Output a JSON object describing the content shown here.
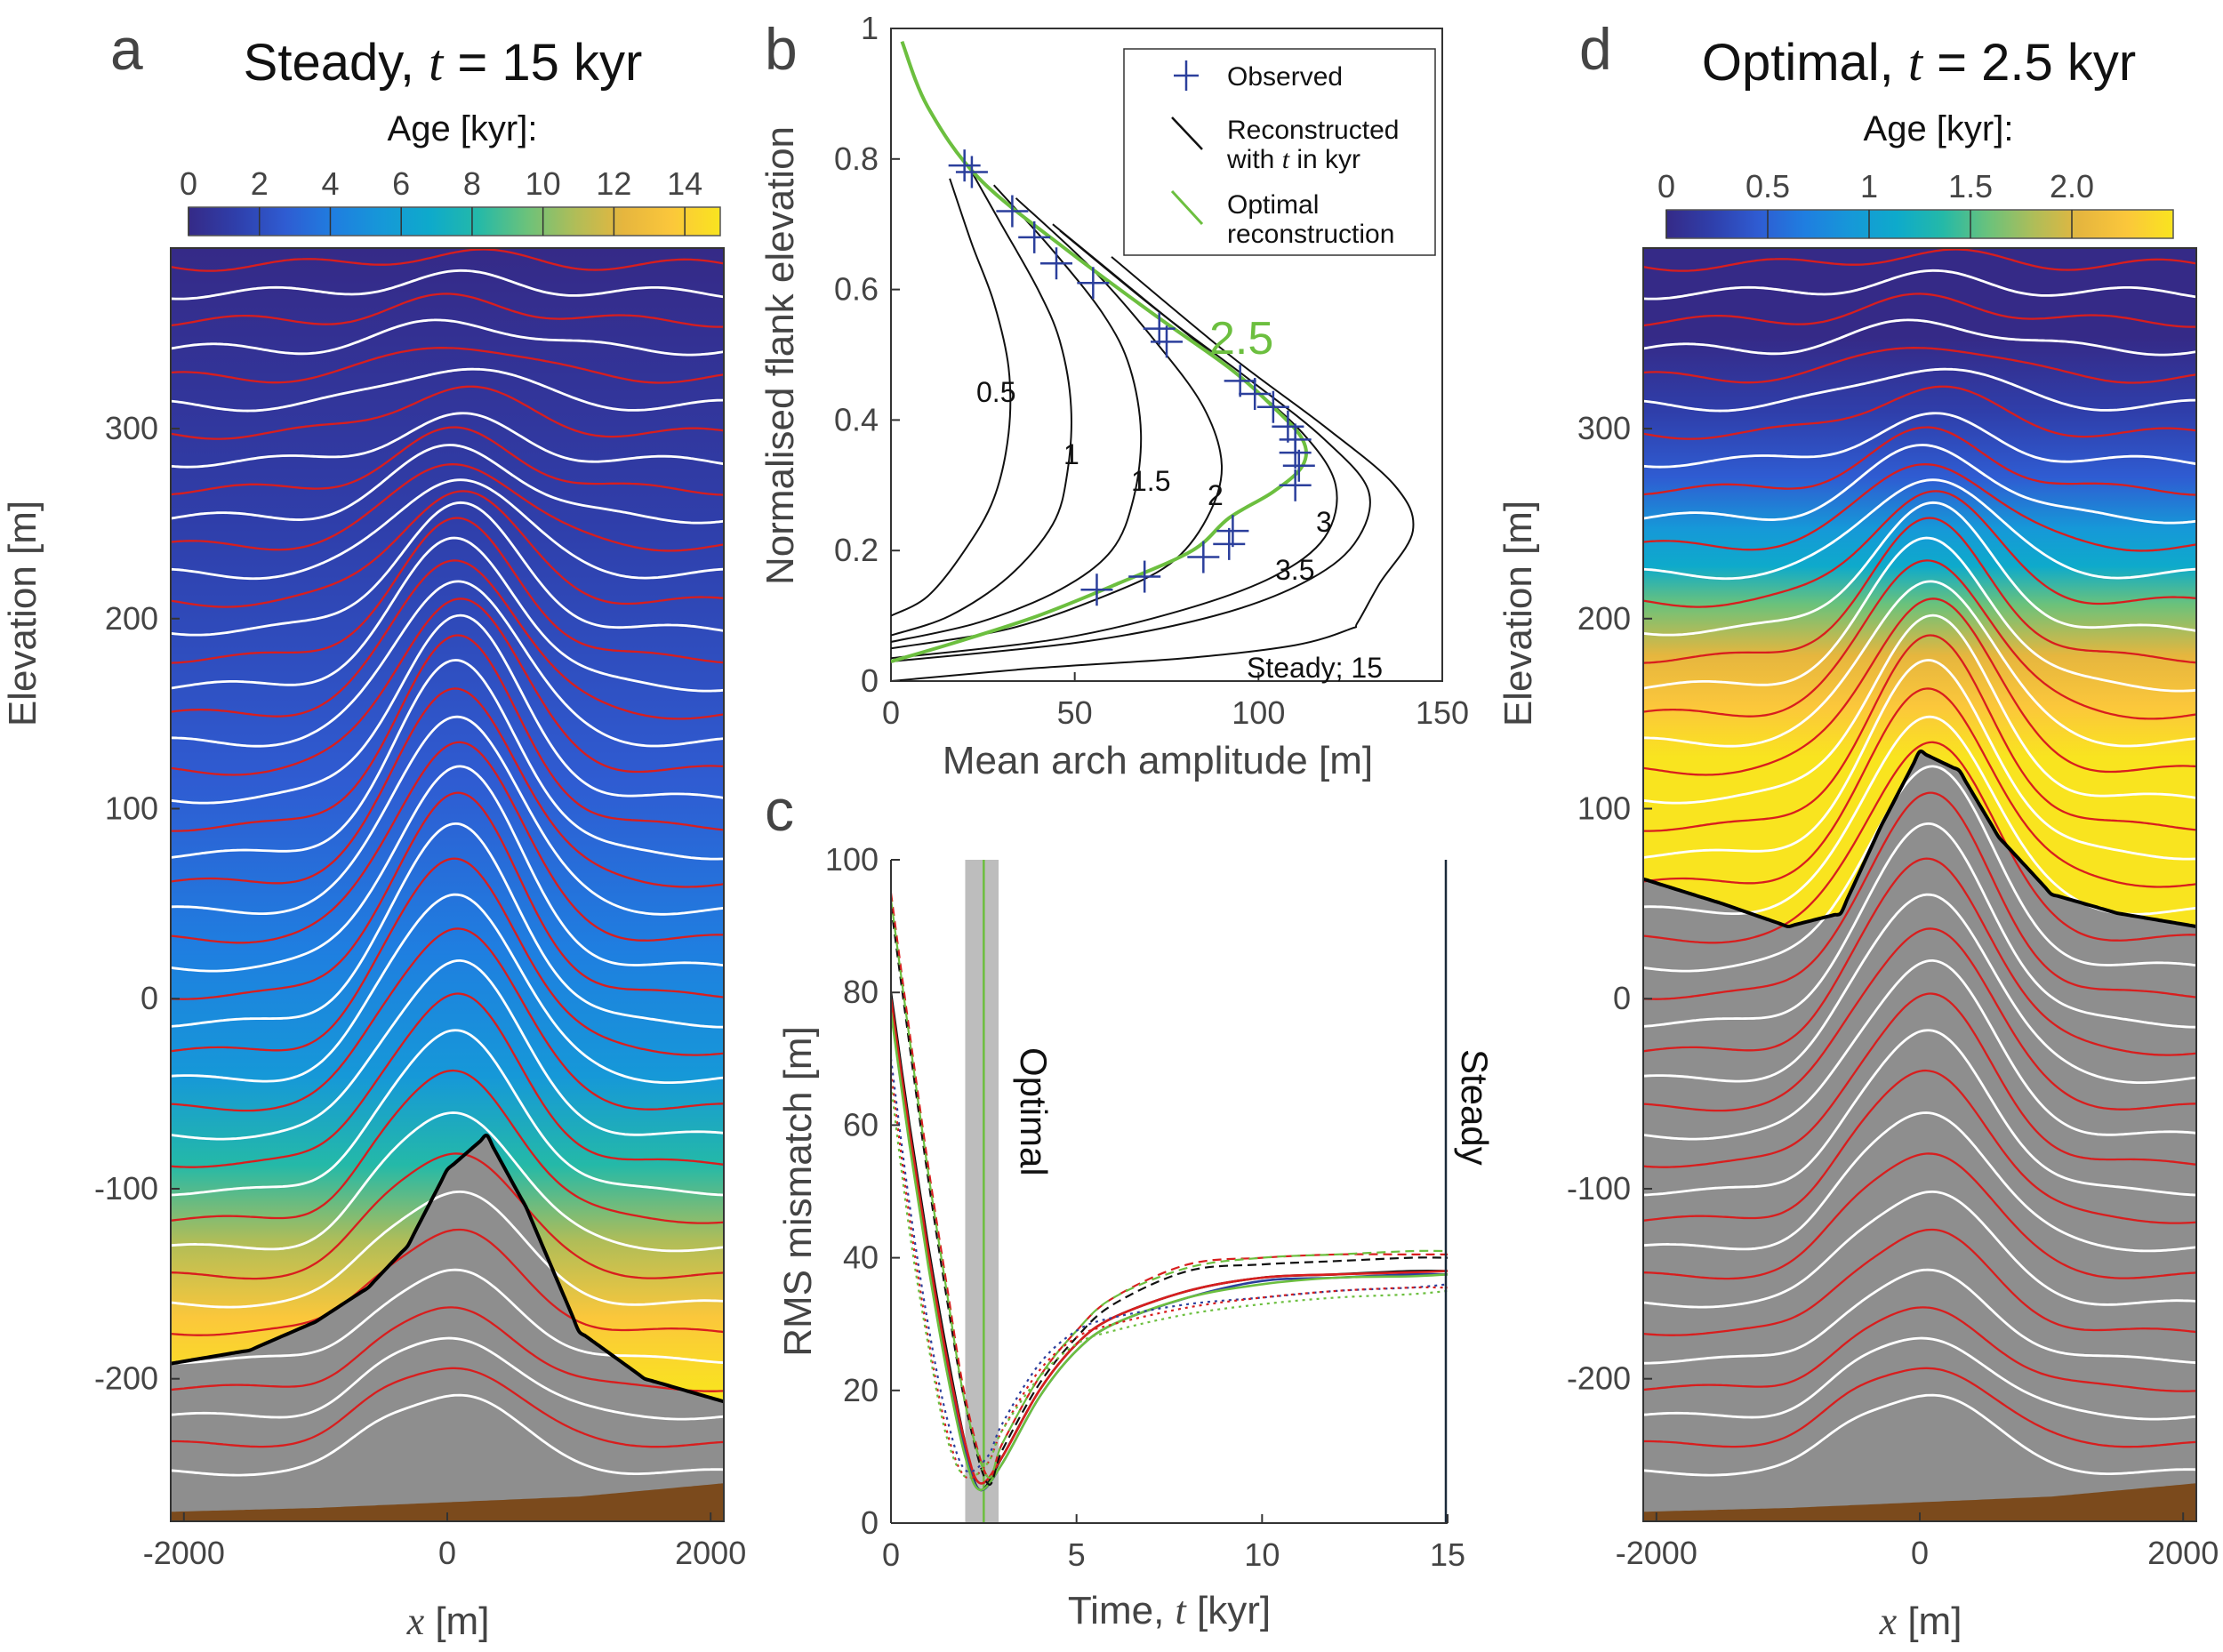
{
  "colors": {
    "parula": [
      "#352a87",
      "#2f3fab",
      "#2f5cd2",
      "#1f7ee0",
      "#1698d8",
      "#0eaacb",
      "#24b9a8",
      "#6bc27b",
      "#b0bd58",
      "#e6b63e",
      "#fbc73b",
      "#f9e41f"
    ],
    "red_layer": "#d81e1e",
    "white_layer": "#ffffff",
    "gray_fill": "#8e8e8e",
    "bed_brown": "#7b4a1c",
    "observed": "#2b3f9c",
    "optimal_green": "#6cbf3f",
    "shade": "#bdbdbd"
  },
  "panel_a": {
    "letter": "a",
    "title_prefix": "Steady, ",
    "title_var": "t",
    "title_suffix": " = 15 kyr",
    "colorbar_title": "Age [kyr]:",
    "colorbar_ticks": [
      "0",
      "2",
      "4",
      "6",
      "8",
      "10",
      "12",
      "14"
    ],
    "ylabel": "Elevation [m]",
    "xlabel_var": "x",
    "xlabel_unit": " [m]"
  },
  "panel_d": {
    "letter": "d",
    "title_prefix": "Optimal, ",
    "title_var": "t",
    "title_suffix": " = 2.5 kyr",
    "colorbar_title": "Age [kyr]:",
    "colorbar_ticks": [
      "0",
      "0.5",
      "1",
      "1.5",
      "2.0"
    ],
    "ylabel": "Elevation [m]",
    "xlabel_var": "x",
    "xlabel_unit": " [m]"
  },
  "panel_b": {
    "letter": "b",
    "legend": {
      "observed": "Observed",
      "reconstructed_line1": "Reconstructed",
      "reconstructed_line2_prefix": "with ",
      "reconstructed_line2_var": "t",
      "reconstructed_line2_suffix": " in kyr",
      "optimal_line1": "Optimal",
      "optimal_line2": "reconstruction"
    },
    "optimal_label": "2.5"
  },
  "panel_c": {
    "letter": "c",
    "optimal_text": "Optimal",
    "steady_text": "Steady"
  },
  "chart_data": [
    {
      "id": "a",
      "type": "heatmap",
      "title": "Steady, t = 15 kyr",
      "xlabel": "x [m]",
      "ylabel": "Elevation [m]",
      "xlim": [
        -2100,
        2100
      ],
      "ylim": [
        -275,
        395
      ],
      "xticks": [
        -2000,
        0,
        2000
      ],
      "yticks": [
        -200,
        -100,
        0,
        100,
        200,
        300
      ],
      "colorbar": {
        "label": "Age [kyr]:",
        "range": [
          0,
          15
        ],
        "ticks": [
          0,
          2,
          4,
          6,
          8,
          10,
          12,
          14
        ]
      },
      "age_surface": {
        "x": [
          -2100,
          -1500,
          -1000,
          -600,
          -300,
          0,
          300,
          600,
          1000,
          1500,
          2100
        ],
        "y": [
          -192,
          -185,
          -170,
          -152,
          -130,
          -90,
          -72,
          -110,
          -175,
          -200,
          -212
        ]
      },
      "bed": {
        "x": [
          -2100,
          -1000,
          0,
          1000,
          2100
        ],
        "y": [
          -270,
          -268,
          -265,
          -262,
          -255
        ]
      },
      "surface_elevation": 390
    },
    {
      "id": "b",
      "type": "line",
      "xlabel": "Mean arch amplitude [m]",
      "ylabel": "Normalised flank elevation",
      "xlim": [
        0,
        150
      ],
      "ylim": [
        0,
        1
      ],
      "xticks": [
        0,
        50,
        100,
        150
      ],
      "yticks": [
        0,
        0.2,
        0.4,
        0.6,
        0.8,
        1
      ],
      "series": [
        {
          "name": "0.5",
          "x": [
            0,
            10,
            20,
            28,
            32,
            32,
            28,
            22,
            16
          ],
          "y": [
            0.1,
            0.13,
            0.2,
            0.28,
            0.38,
            0.48,
            0.58,
            0.67,
            0.77
          ]
        },
        {
          "name": "1",
          "x": [
            0,
            16,
            32,
            44,
            48,
            49,
            46,
            40,
            30,
            22
          ],
          "y": [
            0.07,
            0.1,
            0.16,
            0.24,
            0.32,
            0.42,
            0.52,
            0.6,
            0.7,
            0.78
          ]
        },
        {
          "name": "1.5",
          "x": [
            0,
            24,
            46,
            60,
            66,
            68,
            65,
            58,
            44,
            28
          ],
          "y": [
            0.06,
            0.09,
            0.14,
            0.2,
            0.28,
            0.38,
            0.48,
            0.56,
            0.66,
            0.76
          ]
        },
        {
          "name": "2",
          "x": [
            0,
            32,
            58,
            76,
            86,
            90,
            85,
            72,
            55,
            34
          ],
          "y": [
            0.05,
            0.08,
            0.13,
            0.18,
            0.25,
            0.33,
            0.42,
            0.52,
            0.63,
            0.74
          ]
        },
        {
          "name": "3",
          "x": [
            0,
            46,
            80,
            104,
            118,
            121,
            112,
            94,
            70,
            44
          ],
          "y": [
            0.035,
            0.065,
            0.11,
            0.16,
            0.22,
            0.3,
            0.38,
            0.47,
            0.58,
            0.7
          ]
        },
        {
          "name": "3.5",
          "x": [
            0,
            52,
            88,
            112,
            126,
            130,
            118,
            98,
            72,
            46
          ],
          "y": [
            0.03,
            0.06,
            0.1,
            0.15,
            0.21,
            0.29,
            0.37,
            0.46,
            0.57,
            0.69
          ]
        },
        {
          "name": "Steady; 15",
          "x": [
            0,
            40,
            80,
            110,
            125,
            127,
            133,
            142,
            137,
            118,
            92,
            60
          ],
          "y": [
            0,
            0.02,
            0.035,
            0.055,
            0.08,
            0.09,
            0.15,
            0.23,
            0.3,
            0.39,
            0.5,
            0.65
          ]
        },
        {
          "name": "Optimal reconstruction",
          "x": [
            0,
            18,
            40,
            62,
            82,
            92,
            104,
            112,
            112,
            104,
            92,
            72,
            48,
            24,
            10,
            3
          ],
          "y": [
            0.03,
            0.06,
            0.1,
            0.15,
            0.2,
            0.25,
            0.29,
            0.33,
            0.37,
            0.42,
            0.48,
            0.56,
            0.66,
            0.77,
            0.88,
            0.98
          ]
        }
      ],
      "observed": {
        "x": [
          20,
          22,
          33,
          39,
          45,
          55,
          56,
          69,
          73,
          75,
          85,
          92,
          93,
          95,
          99,
          104,
          108,
          110,
          110,
          111,
          110
        ],
        "y": [
          0.79,
          0.78,
          0.72,
          0.68,
          0.64,
          0.61,
          0.14,
          0.16,
          0.54,
          0.52,
          0.19,
          0.21,
          0.23,
          0.46,
          0.44,
          0.42,
          0.39,
          0.37,
          0.35,
          0.33,
          0.3
        ]
      }
    },
    {
      "id": "c",
      "type": "line",
      "xlabel": "Time, t [kyr]",
      "ylabel": "RMS mismatch [m]",
      "xlim": [
        0,
        15
      ],
      "ylim": [
        0,
        100
      ],
      "xticks": [
        0,
        5,
        10,
        15
      ],
      "yticks": [
        0,
        20,
        40,
        60,
        80,
        100
      ],
      "optimal_band": [
        2,
        2.9
      ],
      "optimal_t": 2.5,
      "steady_t": 15,
      "series": [
        {
          "style": "solid",
          "color": "#111111",
          "x": [
            0,
            0.5,
            1,
            1.5,
            2,
            2.4,
            3,
            4,
            5,
            6,
            8,
            10,
            12,
            14,
            15
          ],
          "y": [
            80,
            60,
            42,
            26,
            12,
            5,
            10,
            20,
            27,
            31,
            35,
            37,
            37.5,
            38,
            38
          ]
        },
        {
          "style": "solid",
          "color": "#2b3f9c",
          "x": [
            0,
            0.5,
            1,
            1.5,
            2,
            2.4,
            3,
            4,
            5,
            6,
            8,
            10,
            12,
            14,
            15
          ],
          "y": [
            78,
            58,
            40,
            24,
            11,
            5,
            9,
            19,
            26,
            30,
            34,
            36.5,
            37,
            37.5,
            37.5
          ]
        },
        {
          "style": "solid",
          "color": "#d81e1e",
          "x": [
            0,
            0.5,
            1,
            1.5,
            2,
            2.4,
            3,
            4,
            5,
            6,
            8,
            10,
            12,
            14,
            15
          ],
          "y": [
            79,
            59,
            41,
            25,
            12,
            6,
            10,
            20,
            27,
            31,
            35,
            37,
            37.5,
            37.8,
            38
          ]
        },
        {
          "style": "solid",
          "color": "#6cbf3f",
          "x": [
            0,
            0.5,
            1,
            1.5,
            2,
            2.4,
            3,
            4,
            5,
            6,
            8,
            10,
            12,
            14,
            15
          ],
          "y": [
            77,
            57,
            39,
            23,
            10,
            5,
            9,
            19,
            26,
            30,
            34,
            36,
            37,
            37.2,
            37.5
          ]
        },
        {
          "style": "dashed",
          "color": "#111111",
          "x": [
            0,
            0.5,
            1,
            1.5,
            2,
            2.6,
            3,
            4,
            5,
            6,
            8,
            10,
            12,
            14,
            15
          ],
          "y": [
            93,
            72,
            52,
            34,
            18,
            6,
            11,
            21,
            28,
            33,
            38,
            39,
            39.5,
            40,
            40
          ]
        },
        {
          "style": "dashed",
          "color": "#d81e1e",
          "x": [
            0,
            0.5,
            1,
            1.5,
            2,
            2.6,
            3,
            4,
            5,
            6,
            8,
            10,
            12,
            14,
            15
          ],
          "y": [
            95,
            74,
            54,
            36,
            19,
            7,
            12,
            22,
            29,
            34,
            39,
            40,
            40.5,
            40.5,
            40.5
          ]
        },
        {
          "style": "dashed",
          "color": "#6cbf3f",
          "x": [
            0,
            0.5,
            1,
            1.5,
            2,
            2.6,
            3,
            4,
            5,
            6,
            8,
            10,
            12,
            14,
            15
          ],
          "y": [
            94,
            73,
            53,
            35,
            18,
            7,
            12,
            22,
            29,
            34,
            38.5,
            40,
            40.5,
            41,
            41
          ]
        },
        {
          "style": "dotted",
          "color": "#2b3f9c",
          "x": [
            0,
            0.5,
            1,
            1.5,
            2,
            2.6,
            3,
            4,
            5,
            6,
            8,
            10,
            12,
            14,
            15
          ],
          "y": [
            70,
            48,
            30,
            16,
            8,
            10,
            15,
            24,
            29,
            31,
            33,
            34,
            35,
            35.5,
            36
          ]
        },
        {
          "style": "dotted",
          "color": "#d81e1e",
          "x": [
            0,
            0.5,
            1,
            1.5,
            2,
            2.6,
            3,
            4,
            5,
            6,
            8,
            10,
            12,
            14,
            15
          ],
          "y": [
            68,
            46,
            28,
            14,
            7,
            9,
            14,
            23,
            28,
            30,
            32.5,
            34,
            35,
            35.5,
            35.5
          ]
        },
        {
          "style": "dotted",
          "color": "#6cbf3f",
          "x": [
            0,
            0.5,
            1,
            1.5,
            2,
            2.6,
            3,
            4,
            5,
            6,
            8,
            10,
            12,
            14,
            15
          ],
          "y": [
            66,
            44,
            27,
            13,
            7,
            9,
            14,
            22,
            27,
            29,
            31.5,
            33,
            34,
            34.5,
            35
          ]
        }
      ]
    },
    {
      "id": "d",
      "type": "heatmap",
      "title": "Optimal, t = 2.5 kyr",
      "xlabel": "x [m]",
      "ylabel": "Elevation [m]",
      "xlim": [
        -2100,
        2100
      ],
      "ylim": [
        -275,
        395
      ],
      "xticks": [
        -2000,
        0,
        2000
      ],
      "yticks": [
        -200,
        -100,
        0,
        100,
        200,
        300
      ],
      "colorbar": {
        "label": "Age [kyr]:",
        "range": [
          0,
          2.5
        ],
        "ticks": [
          0,
          0.5,
          1,
          1.5,
          2.0
        ]
      },
      "age_surface": {
        "x": [
          -2100,
          -1500,
          -1000,
          -600,
          -300,
          0,
          300,
          600,
          1000,
          1500,
          2100
        ],
        "y": [
          63,
          50,
          38,
          45,
          90,
          130,
          120,
          85,
          55,
          45,
          38
        ]
      },
      "bed": {
        "x": [
          -2100,
          -1000,
          0,
          1000,
          2100
        ],
        "y": [
          -270,
          -268,
          -265,
          -262,
          -255
        ]
      },
      "surface_elevation": 390
    }
  ]
}
